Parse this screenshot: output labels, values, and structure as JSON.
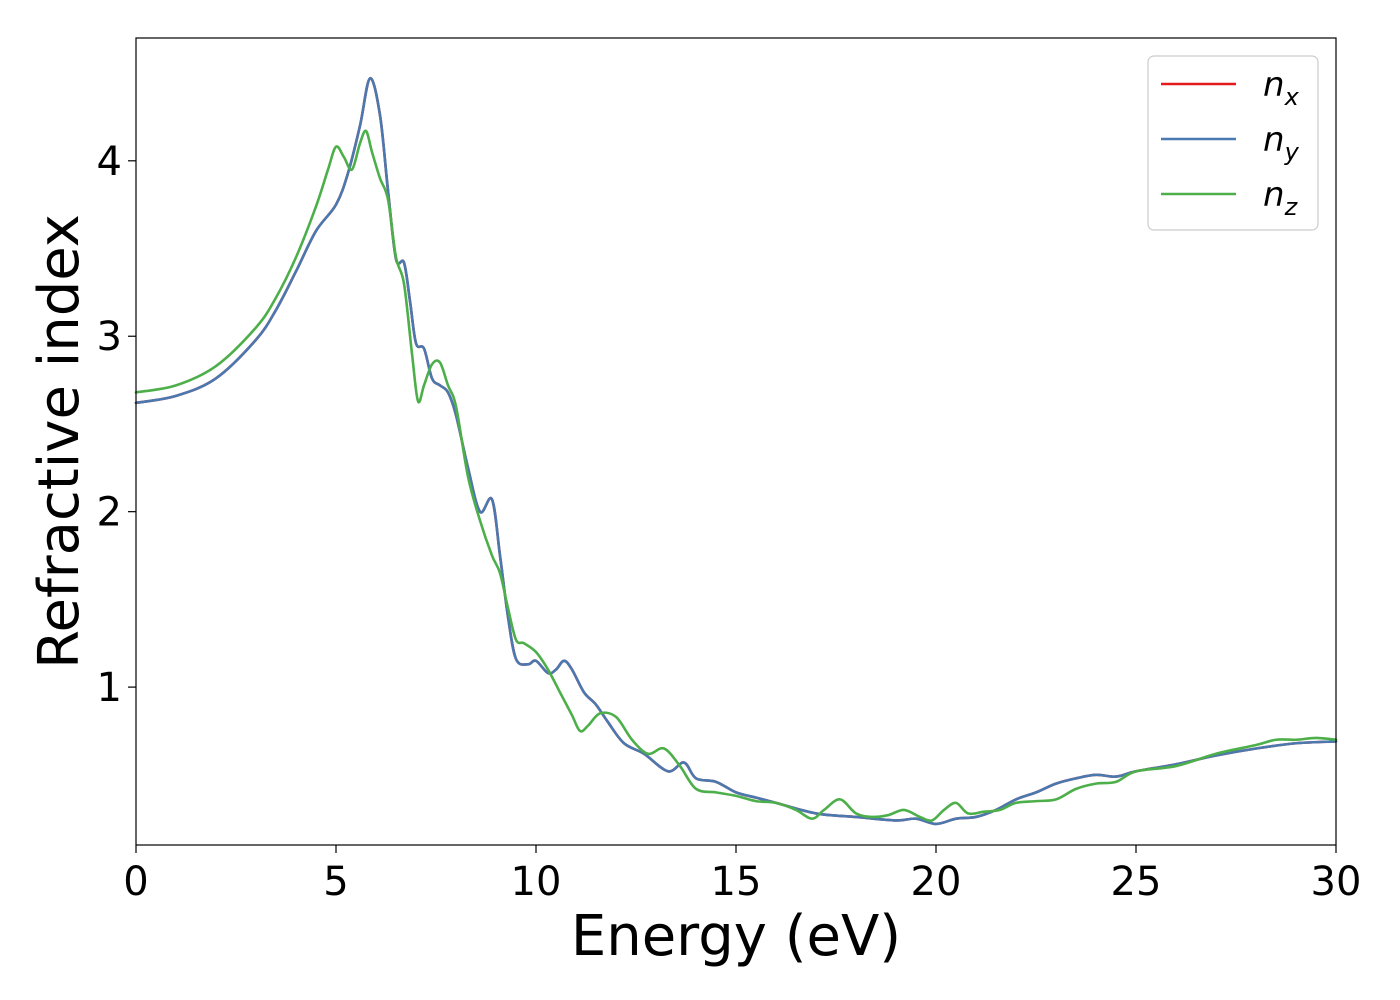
{
  "chart_data": {
    "type": "line",
    "title": "",
    "xlabel": "Energy (eV)",
    "ylabel": "Refractive index",
    "xlim": [
      0,
      30
    ],
    "ylim": [
      0.1,
      4.7
    ],
    "xticks": [
      0,
      5,
      10,
      15,
      20,
      25,
      30
    ],
    "yticks": [
      1,
      2,
      3,
      4
    ],
    "grid": false,
    "legend_position": "top-right",
    "series": [
      {
        "name": "n_x",
        "legend_base": "n",
        "legend_sub": "x",
        "color": "#e41a1c",
        "x": [
          0,
          1,
          2,
          3,
          3.5,
          4,
          4.5,
          5,
          5.3,
          5.6,
          5.85,
          6.1,
          6.3,
          6.5,
          6.7,
          6.85,
          7.0,
          7.2,
          7.4,
          7.6,
          7.8,
          8.0,
          8.3,
          8.6,
          8.9,
          9.1,
          9.3,
          9.5,
          9.8,
          10.0,
          10.3,
          10.5,
          10.7,
          10.9,
          11.2,
          11.5,
          11.8,
          12.2,
          12.7,
          13.3,
          13.7,
          14.0,
          14.5,
          15,
          15.5,
          16,
          17,
          18,
          19,
          19.5,
          20,
          20.5,
          21,
          21.5,
          22,
          22.5,
          23,
          23.5,
          24,
          24.5,
          25,
          26,
          27,
          28,
          29,
          30
        ],
        "values": [
          2.62,
          2.66,
          2.76,
          2.98,
          3.15,
          3.37,
          3.6,
          3.75,
          3.93,
          4.2,
          4.47,
          4.26,
          3.83,
          3.44,
          3.42,
          3.2,
          2.96,
          2.93,
          2.76,
          2.72,
          2.68,
          2.55,
          2.25,
          2.0,
          2.07,
          1.75,
          1.4,
          1.16,
          1.13,
          1.15,
          1.08,
          1.1,
          1.15,
          1.1,
          0.97,
          0.9,
          0.8,
          0.68,
          0.62,
          0.52,
          0.57,
          0.48,
          0.46,
          0.4,
          0.37,
          0.34,
          0.28,
          0.26,
          0.24,
          0.25,
          0.22,
          0.25,
          0.26,
          0.3,
          0.36,
          0.4,
          0.45,
          0.48,
          0.5,
          0.49,
          0.52,
          0.56,
          0.61,
          0.65,
          0.68,
          0.69
        ]
      },
      {
        "name": "n_y",
        "legend_base": "n",
        "legend_sub": "y",
        "color": "#4a79b0",
        "x": [
          0,
          1,
          2,
          3,
          3.5,
          4,
          4.5,
          5,
          5.3,
          5.6,
          5.85,
          6.1,
          6.3,
          6.5,
          6.7,
          6.85,
          7.0,
          7.2,
          7.4,
          7.6,
          7.8,
          8.0,
          8.3,
          8.6,
          8.9,
          9.1,
          9.3,
          9.5,
          9.8,
          10.0,
          10.3,
          10.5,
          10.7,
          10.9,
          11.2,
          11.5,
          11.8,
          12.2,
          12.7,
          13.3,
          13.7,
          14.0,
          14.5,
          15,
          15.5,
          16,
          17,
          18,
          19,
          19.5,
          20,
          20.5,
          21,
          21.5,
          22,
          22.5,
          23,
          23.5,
          24,
          24.5,
          25,
          26,
          27,
          28,
          29,
          30
        ],
        "values": [
          2.62,
          2.66,
          2.76,
          2.98,
          3.15,
          3.37,
          3.6,
          3.75,
          3.93,
          4.2,
          4.47,
          4.26,
          3.83,
          3.44,
          3.42,
          3.2,
          2.96,
          2.93,
          2.76,
          2.72,
          2.68,
          2.55,
          2.25,
          2.0,
          2.07,
          1.75,
          1.4,
          1.16,
          1.13,
          1.15,
          1.08,
          1.1,
          1.15,
          1.1,
          0.97,
          0.9,
          0.8,
          0.68,
          0.62,
          0.52,
          0.57,
          0.48,
          0.46,
          0.4,
          0.37,
          0.34,
          0.28,
          0.26,
          0.24,
          0.25,
          0.22,
          0.25,
          0.26,
          0.3,
          0.36,
          0.4,
          0.45,
          0.48,
          0.5,
          0.49,
          0.52,
          0.56,
          0.61,
          0.65,
          0.68,
          0.69
        ]
      },
      {
        "name": "n_z",
        "legend_base": "n",
        "legend_sub": "z",
        "color": "#4daf4a",
        "x": [
          0,
          1,
          2,
          3,
          3.5,
          4,
          4.5,
          4.8,
          5.0,
          5.2,
          5.4,
          5.6,
          5.75,
          5.9,
          6.1,
          6.3,
          6.5,
          6.7,
          6.9,
          7.05,
          7.2,
          7.4,
          7.6,
          7.8,
          8.0,
          8.3,
          8.6,
          8.9,
          9.1,
          9.3,
          9.5,
          9.7,
          10.0,
          10.3,
          10.6,
          10.9,
          11.1,
          11.3,
          11.6,
          12.0,
          12.4,
          12.8,
          13.2,
          13.6,
          14.0,
          14.5,
          15,
          15.5,
          16,
          16.5,
          16.9,
          17.2,
          17.6,
          18.0,
          18.4,
          18.8,
          19.2,
          19.6,
          19.9,
          20.2,
          20.5,
          20.8,
          21.2,
          21.6,
          22.0,
          22.5,
          23.0,
          23.5,
          24.0,
          24.5,
          25.0,
          26,
          27,
          28,
          28.5,
          29,
          29.5,
          30
        ],
        "values": [
          2.68,
          2.72,
          2.83,
          3.05,
          3.22,
          3.45,
          3.74,
          3.95,
          4.08,
          4.02,
          3.95,
          4.1,
          4.17,
          4.05,
          3.9,
          3.78,
          3.45,
          3.3,
          2.9,
          2.63,
          2.72,
          2.84,
          2.85,
          2.72,
          2.6,
          2.2,
          1.95,
          1.75,
          1.65,
          1.45,
          1.27,
          1.25,
          1.2,
          1.1,
          0.97,
          0.84,
          0.75,
          0.78,
          0.85,
          0.83,
          0.7,
          0.62,
          0.65,
          0.55,
          0.42,
          0.4,
          0.38,
          0.35,
          0.34,
          0.3,
          0.25,
          0.3,
          0.36,
          0.28,
          0.26,
          0.27,
          0.3,
          0.26,
          0.24,
          0.3,
          0.34,
          0.28,
          0.29,
          0.3,
          0.34,
          0.35,
          0.36,
          0.42,
          0.45,
          0.46,
          0.52,
          0.55,
          0.62,
          0.67,
          0.7,
          0.7,
          0.71,
          0.7
        ]
      }
    ]
  }
}
